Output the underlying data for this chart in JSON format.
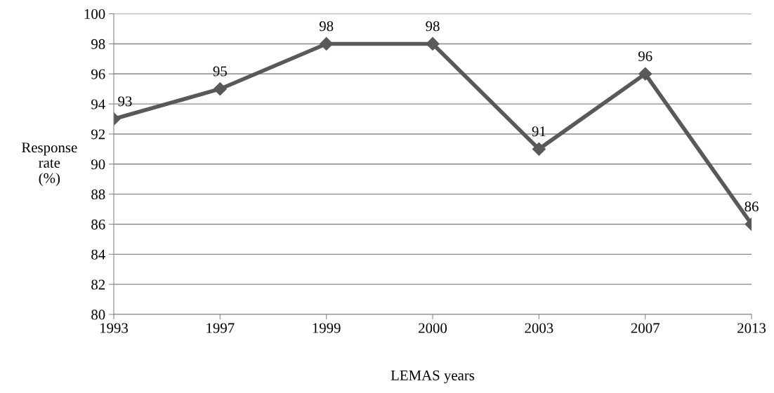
{
  "chart_data": {
    "type": "line",
    "xlabel": "LEMAS years",
    "ylabel": "Response\nrate\n(%)",
    "categories": [
      "1993",
      "1997",
      "1999",
      "2000",
      "2003",
      "2007",
      "2013"
    ],
    "series": [
      {
        "color": "#595959",
        "values": [
          93,
          95,
          98,
          98,
          91,
          96,
          86
        ]
      }
    ],
    "ylim": [
      80,
      100
    ],
    "yticks": [
      80,
      82,
      84,
      86,
      88,
      90,
      92,
      94,
      96,
      98,
      100
    ],
    "grid": "y",
    "marker": "diamond",
    "line_style": "solid",
    "data_labels": true,
    "legend": false
  }
}
